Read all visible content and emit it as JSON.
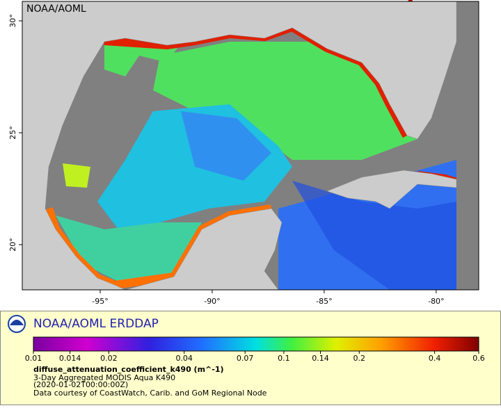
{
  "map": {
    "watermark": "NOAA/AOML",
    "xlim": [
      -98.48,
      -78.1
    ],
    "ylim": [
      17.98,
      30.87
    ],
    "xticks": [
      {
        "value": -95,
        "label": "-95°"
      },
      {
        "value": -90,
        "label": "-90°"
      },
      {
        "value": -85,
        "label": "-85°"
      },
      {
        "value": -80,
        "label": "-80°"
      }
    ],
    "yticks": [
      {
        "value": 20,
        "label": "20°"
      },
      {
        "value": 25,
        "label": "25°"
      },
      {
        "value": 30,
        "label": "30°"
      }
    ]
  },
  "legend": {
    "title": "NOAA/AOML ERDDAP",
    "colorbar": {
      "log_scale": true,
      "lim": [
        0.01,
        0.6
      ],
      "ticks": [
        0.01,
        0.014,
        0.02,
        0.04,
        0.07,
        0.1,
        0.14,
        0.2,
        0.4,
        0.6
      ]
    },
    "variable": "diffuse_attenuation_coefficient_k490 (m^-1)",
    "dataset": "3-Day Aggregated MODIS Aqua K490",
    "time": "(2020-01-02T00:00:00Z)",
    "credit": "Data courtesy of CoastWatch, Carib. and GoM Regional Node"
  }
}
